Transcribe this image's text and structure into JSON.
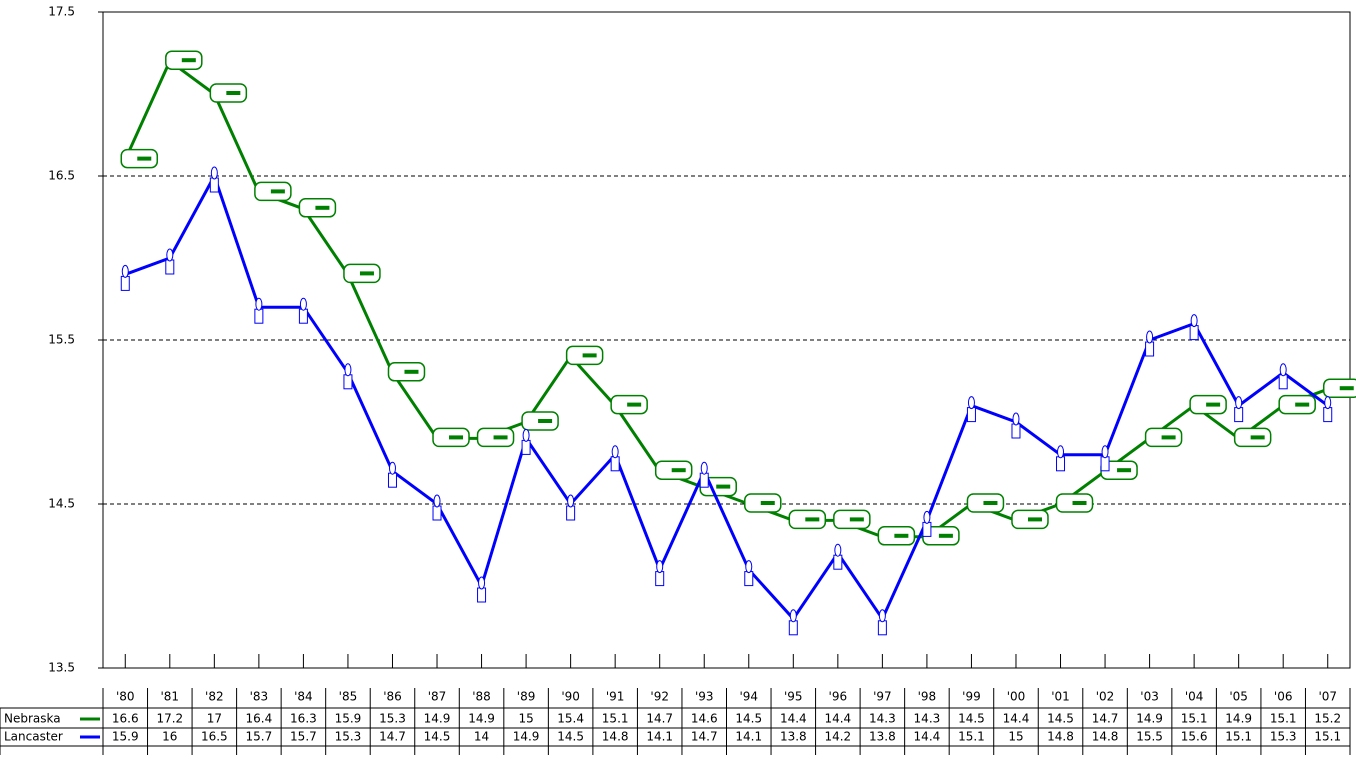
{
  "chart_data": {
    "type": "line",
    "categories": [
      "'80",
      "'81",
      "'82",
      "'83",
      "'84",
      "'85",
      "'86",
      "'87",
      "'88",
      "'89",
      "'90",
      "'91",
      "'92",
      "'93",
      "'94",
      "'95",
      "'96",
      "'97",
      "'98",
      "'99",
      "'00",
      "'01",
      "'02",
      "'03",
      "'04",
      "'05",
      "'06",
      "'07"
    ],
    "series": [
      {
        "name": "Nebraska",
        "color": "#008000",
        "values": [
          16.6,
          17.2,
          17.0,
          16.4,
          16.3,
          15.9,
          15.3,
          14.9,
          14.9,
          15.0,
          15.4,
          15.1,
          14.7,
          14.6,
          14.5,
          14.4,
          14.4,
          14.3,
          14.3,
          14.5,
          14.4,
          14.5,
          14.7,
          14.9,
          15.1,
          14.9,
          15.1,
          15.2
        ]
      },
      {
        "name": "Lancaster",
        "color": "#0000ff",
        "values": [
          15.9,
          16.0,
          16.5,
          15.7,
          15.7,
          15.3,
          14.7,
          14.5,
          14.0,
          14.9,
          14.5,
          14.8,
          14.1,
          14.7,
          14.1,
          13.8,
          14.2,
          13.8,
          14.4,
          15.1,
          15.0,
          14.8,
          14.8,
          15.5,
          15.6,
          15.1,
          15.3,
          15.1
        ]
      }
    ],
    "ylim": [
      13.5,
      17.5
    ],
    "yticks": [
      13.5,
      14.5,
      15.5,
      16.5,
      17.5
    ],
    "grid": true
  }
}
